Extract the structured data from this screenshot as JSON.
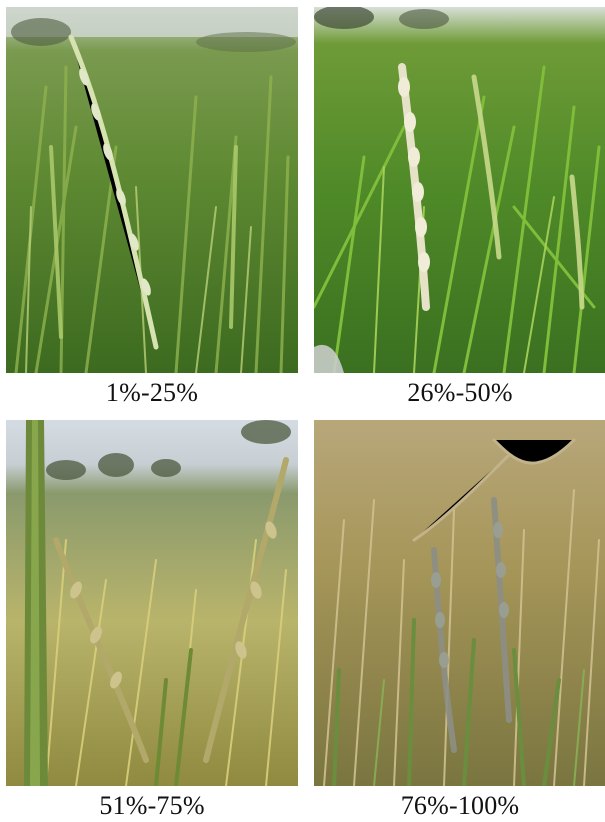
{
  "panels": [
    {
      "caption": "1%-25%",
      "photo": "rice-panicles-healthy-green-photo"
    },
    {
      "caption": "26%-50%",
      "photo": "rice-panicles-partial-whitening-photo"
    },
    {
      "caption": "51%-75%",
      "photo": "rice-panicles-yellowing-photo"
    },
    {
      "caption": "76%-100%",
      "photo": "rice-panicles-severe-blight-photo"
    }
  ]
}
